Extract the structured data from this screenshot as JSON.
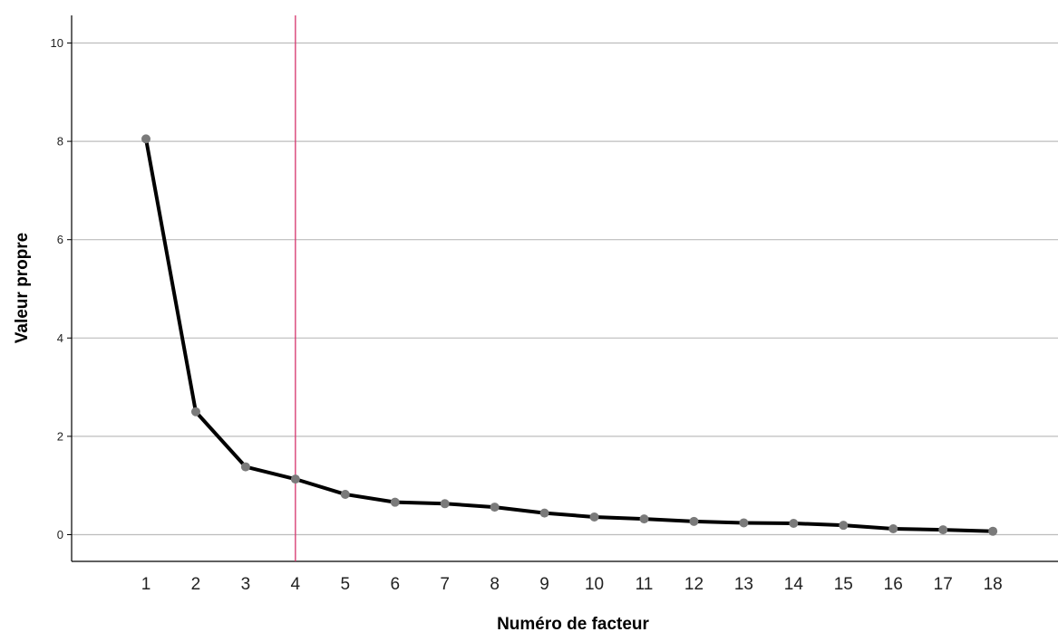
{
  "chart_data": {
    "type": "line",
    "title": "",
    "xlabel": "Numéro de facteur",
    "ylabel": "Valeur propre",
    "x": [
      1,
      2,
      3,
      4,
      5,
      6,
      7,
      8,
      9,
      10,
      11,
      12,
      13,
      14,
      15,
      16,
      17,
      18
    ],
    "x_tick_labels": [
      "1",
      "2",
      "3",
      "4",
      "5",
      "6",
      "7",
      "8",
      "9",
      "10",
      "11",
      "12",
      "13",
      "14",
      "15",
      "16",
      "17",
      "18"
    ],
    "series": [
      {
        "values": [
          8.05,
          2.5,
          1.38,
          1.13,
          0.82,
          0.66,
          0.63,
          0.56,
          0.44,
          0.36,
          0.32,
          0.27,
          0.24,
          0.23,
          0.19,
          0.12,
          0.1,
          0.07
        ]
      }
    ],
    "y_ticks": [
      0,
      2,
      4,
      6,
      8,
      10
    ],
    "y_tick_labels": [
      "0",
      "2",
      "4",
      "6",
      "8",
      "10"
    ],
    "ylim": [
      -0.6,
      10.6
    ],
    "grid": "horizontal",
    "reference_line": {
      "x": 4,
      "color": "#d6336c"
    },
    "colors": {
      "line": "#000000",
      "marker": "#7a7a7a",
      "grid": "#bdbdbd",
      "axis": "#000000"
    }
  }
}
